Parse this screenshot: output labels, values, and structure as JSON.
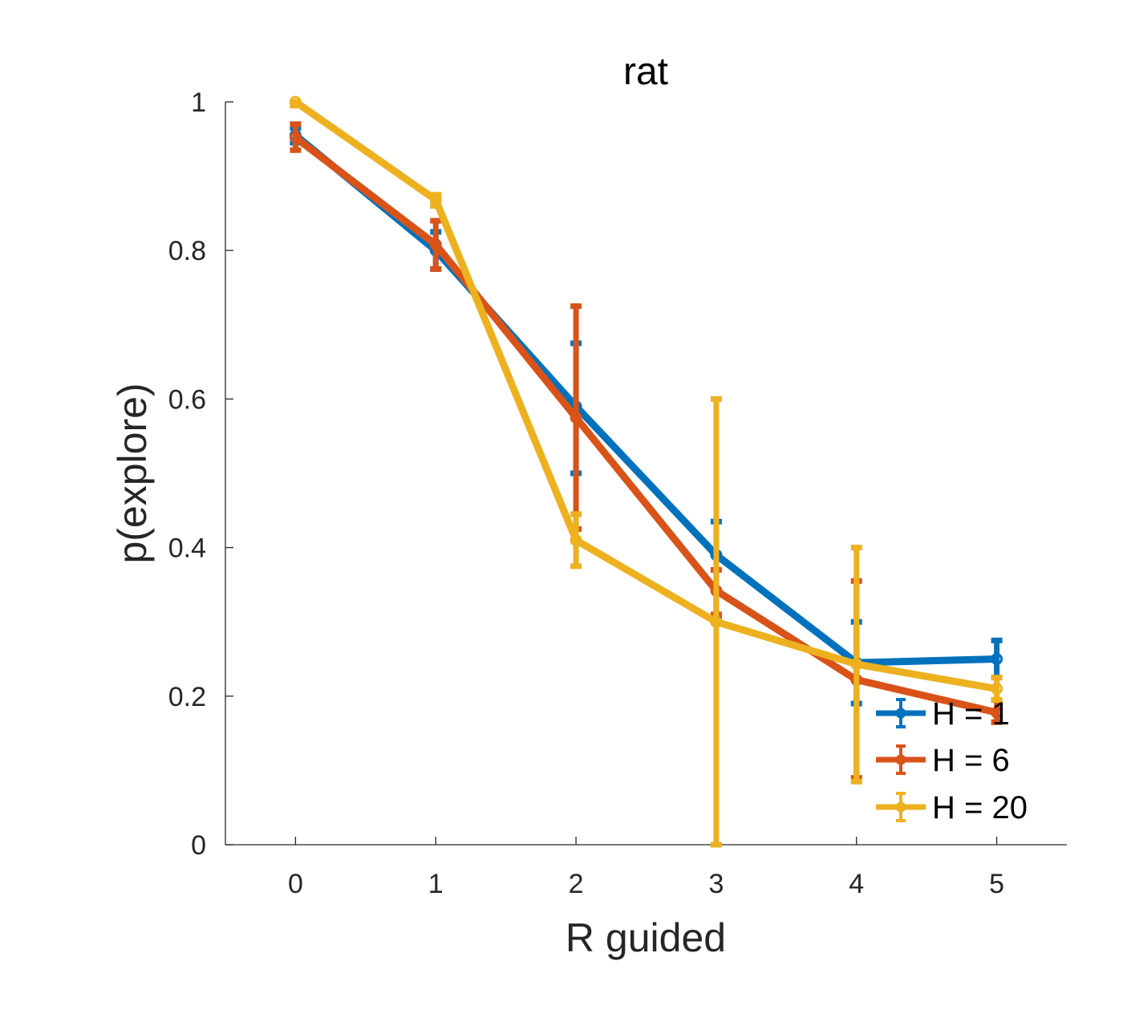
{
  "chart_data": {
    "type": "line",
    "title": "rat",
    "xlabel": "R guided",
    "ylabel": "p(explore)",
    "x": [
      0,
      1,
      2,
      3,
      4,
      5
    ],
    "xlim": [
      -0.5,
      5.5
    ],
    "ylim": [
      0,
      1
    ],
    "xticks": [
      "0",
      "1",
      "2",
      "3",
      "4",
      "5"
    ],
    "yticks": [
      "0",
      "0.2",
      "0.4",
      "0.6",
      "0.8",
      "1"
    ],
    "grid": false,
    "legend_position": "bottom-right",
    "error_bars": true,
    "series": [
      {
        "name": "H = 1",
        "color": "#0072BD",
        "values": [
          0.955,
          0.8,
          0.59,
          0.39,
          0.245,
          0.25
        ],
        "err_low": [
          0.945,
          0.775,
          0.5,
          0.305,
          0.19,
          0.225
        ],
        "err_high": [
          0.965,
          0.825,
          0.675,
          0.435,
          0.3,
          0.275
        ]
      },
      {
        "name": "H = 6",
        "color": "#D95319",
        "values": [
          0.952,
          0.808,
          0.575,
          0.342,
          0.222,
          0.178
        ],
        "err_low": [
          0.935,
          0.775,
          0.425,
          0.31,
          0.09,
          0.165
        ],
        "err_high": [
          0.97,
          0.84,
          0.725,
          0.37,
          0.355,
          0.195
        ]
      },
      {
        "name": "H = 20",
        "color": "#EDB120",
        "values": [
          1.0,
          0.868,
          0.41,
          0.3,
          0.243,
          0.21
        ],
        "err_low": [
          0.995,
          0.86,
          0.375,
          0.0,
          0.085,
          0.195
        ],
        "err_high": [
          1.0,
          0.875,
          0.445,
          0.6,
          0.4,
          0.225
        ]
      }
    ]
  }
}
